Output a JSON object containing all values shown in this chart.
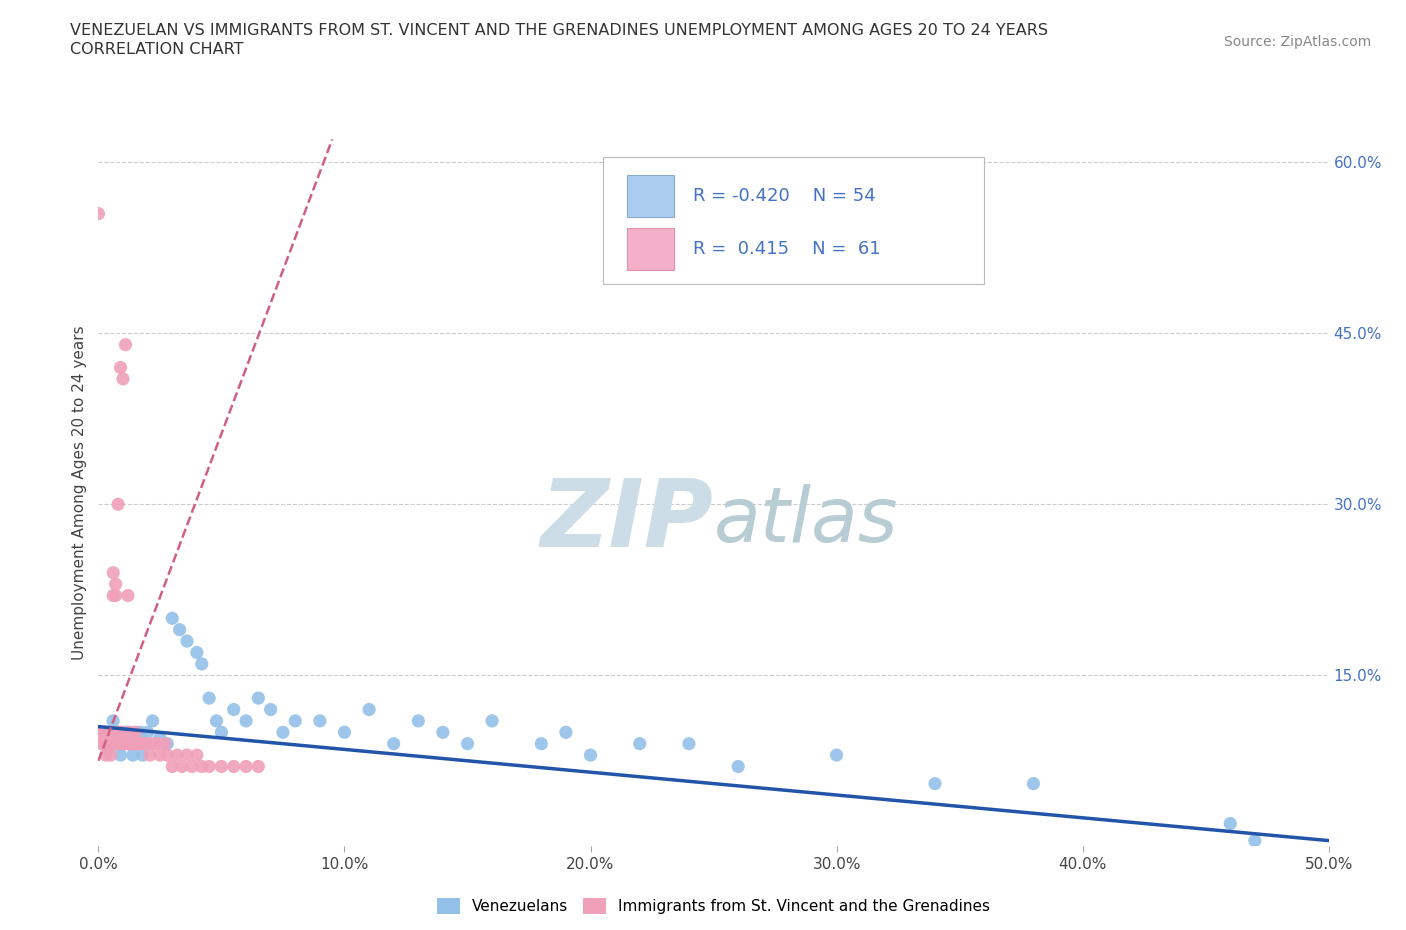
{
  "title_line1": "VENEZUELAN VS IMMIGRANTS FROM ST. VINCENT AND THE GRENADINES UNEMPLOYMENT AMONG AGES 20 TO 24 YEARS",
  "title_line2": "CORRELATION CHART",
  "source_text": "Source: ZipAtlas.com",
  "ylabel": "Unemployment Among Ages 20 to 24 years",
  "xlim": [
    0.0,
    0.5
  ],
  "ylim": [
    0.0,
    0.62
  ],
  "xtick_labels": [
    "0.0%",
    "10.0%",
    "20.0%",
    "30.0%",
    "40.0%",
    "50.0%"
  ],
  "xtick_values": [
    0.0,
    0.1,
    0.2,
    0.3,
    0.4,
    0.5
  ],
  "ytick_labels_right": [
    "15.0%",
    "30.0%",
    "45.0%",
    "60.0%"
  ],
  "ytick_values_right": [
    0.15,
    0.3,
    0.45,
    0.6
  ],
  "grid_color": "#cccccc",
  "background_color": "#ffffff",
  "watermark_zip": "ZIP",
  "watermark_atlas": "atlas",
  "watermark_color_zip": "#c8dce8",
  "watermark_color_atlas": "#b8ccd8",
  "legend_R_blue": "-0.420",
  "legend_N_blue": "54",
  "legend_R_pink": "0.415",
  "legend_N_pink": "61",
  "blue_color": "#92c0e8",
  "pink_color": "#f0a0b8",
  "trend_blue_color": "#2255aa",
  "trend_pink_color": "#d06080",
  "legend_label_blue": "Venezuelans",
  "legend_label_pink": "Immigrants from St. Vincent and the Grenadines",
  "venezuelan_x": [
    0.002,
    0.003,
    0.004,
    0.005,
    0.006,
    0.007,
    0.008,
    0.009,
    0.01,
    0.011,
    0.012,
    0.013,
    0.014,
    0.015,
    0.016,
    0.017,
    0.018,
    0.02,
    0.022,
    0.025,
    0.028,
    0.03,
    0.033,
    0.036,
    0.04,
    0.042,
    0.045,
    0.048,
    0.05,
    0.055,
    0.06,
    0.065,
    0.07,
    0.075,
    0.08,
    0.09,
    0.1,
    0.11,
    0.12,
    0.13,
    0.14,
    0.15,
    0.16,
    0.18,
    0.19,
    0.2,
    0.22,
    0.24,
    0.26,
    0.3,
    0.34,
    0.38,
    0.46,
    0.47
  ],
  "venezuelan_y": [
    0.095,
    0.1,
    0.085,
    0.1,
    0.11,
    0.09,
    0.1,
    0.08,
    0.09,
    0.1,
    0.1,
    0.09,
    0.08,
    0.1,
    0.09,
    0.1,
    0.08,
    0.1,
    0.11,
    0.095,
    0.09,
    0.2,
    0.19,
    0.18,
    0.17,
    0.16,
    0.13,
    0.11,
    0.1,
    0.12,
    0.11,
    0.13,
    0.12,
    0.1,
    0.11,
    0.11,
    0.1,
    0.12,
    0.09,
    0.11,
    0.1,
    0.09,
    0.11,
    0.09,
    0.1,
    0.08,
    0.09,
    0.09,
    0.07,
    0.08,
    0.055,
    0.055,
    0.02,
    0.005
  ],
  "svg_x": [
    0.0,
    0.0,
    0.001,
    0.001,
    0.002,
    0.002,
    0.002,
    0.003,
    0.003,
    0.003,
    0.004,
    0.004,
    0.004,
    0.005,
    0.005,
    0.005,
    0.006,
    0.006,
    0.006,
    0.007,
    0.007,
    0.008,
    0.008,
    0.008,
    0.009,
    0.009,
    0.01,
    0.01,
    0.01,
    0.011,
    0.011,
    0.012,
    0.012,
    0.013,
    0.013,
    0.014,
    0.015,
    0.015,
    0.016,
    0.017,
    0.018,
    0.019,
    0.02,
    0.021,
    0.022,
    0.024,
    0.025,
    0.027,
    0.028,
    0.03,
    0.032,
    0.034,
    0.036,
    0.038,
    0.04,
    0.042,
    0.045,
    0.05,
    0.055,
    0.06,
    0.065
  ],
  "svg_y": [
    0.095,
    0.1,
    0.1,
    0.09,
    0.095,
    0.1,
    0.09,
    0.1,
    0.095,
    0.08,
    0.09,
    0.1,
    0.09,
    0.095,
    0.1,
    0.08,
    0.22,
    0.24,
    0.09,
    0.23,
    0.22,
    0.3,
    0.09,
    0.1,
    0.42,
    0.1,
    0.41,
    0.09,
    0.1,
    0.44,
    0.09,
    0.22,
    0.09,
    0.1,
    0.09,
    0.09,
    0.09,
    0.1,
    0.09,
    0.09,
    0.09,
    0.09,
    0.09,
    0.08,
    0.09,
    0.09,
    0.08,
    0.09,
    0.08,
    0.07,
    0.08,
    0.07,
    0.08,
    0.07,
    0.08,
    0.07,
    0.07,
    0.07,
    0.07,
    0.07,
    0.07
  ],
  "svg_outlier_x": [
    0.0
  ],
  "svg_outlier_y": [
    0.555
  ]
}
